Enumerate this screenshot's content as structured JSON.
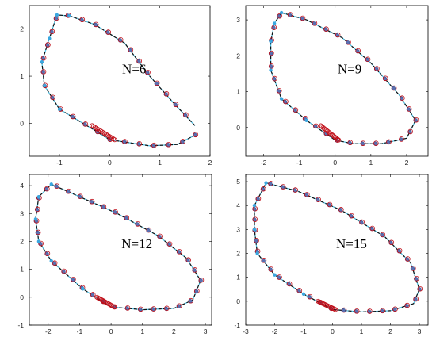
{
  "colors": {
    "dash_line": "#111111",
    "cyan_curve": "#4fc3e8",
    "blue_marker": "#5a6fb0",
    "red_circle": "#c0101a",
    "vertex_marker": "#3aa7e0"
  },
  "chart_data": [
    {
      "type": "scatter",
      "label": "N=6",
      "xlim": [
        -1.6,
        2.0
      ],
      "ylim": [
        -0.7,
        2.5
      ],
      "xticks": [
        -1,
        0,
        1,
        2
      ],
      "yticks": [
        0,
        1,
        2
      ],
      "xtick_labels": [
        "-1",
        "0",
        "1",
        "2"
      ],
      "ytick_labels": [
        "0",
        "1",
        "2"
      ],
      "vertices": [
        [
          1.7,
          -0.25
        ],
        [
          1.35,
          -0.45
        ],
        [
          0.8,
          -0.48
        ],
        [
          0,
          -0.35
        ],
        [
          -0.3,
          -0.15
        ],
        [
          -1.0,
          0.3
        ],
        [
          -1.3,
          0.8
        ],
        [
          -1.35,
          1.3
        ],
        [
          -1.2,
          1.8
        ],
        [
          -1.05,
          2.3
        ],
        [
          -0.8,
          2.28
        ],
        [
          -0.3,
          2.1
        ],
        [
          0.3,
          1.7
        ],
        [
          0.8,
          1.0
        ],
        [
          1.3,
          0.4
        ],
        [
          1.7,
          -0.05
        ]
      ],
      "cluster_start": [
        -0.35,
        -0.05
      ],
      "cluster_end": [
        0.1,
        -0.35
      ],
      "grid": false
    },
    {
      "type": "scatter",
      "label": "N=9",
      "xlim": [
        -2.5,
        2.6
      ],
      "ylim": [
        -0.8,
        3.4
      ],
      "xticks": [
        -2,
        -1,
        0,
        1,
        2
      ],
      "yticks": [
        0,
        1,
        2,
        3
      ],
      "xtick_labels": [
        "-2",
        "-1",
        "0",
        "1",
        "2"
      ],
      "ytick_labels": [
        "0",
        "1",
        "2",
        "3"
      ],
      "vertices": [
        [
          2.25,
          0.2
        ],
        [
          2.0,
          -0.3
        ],
        [
          1.3,
          -0.45
        ],
        [
          0.5,
          -0.45
        ],
        [
          0,
          -0.35
        ],
        [
          -0.8,
          0.2
        ],
        [
          -1.5,
          0.8
        ],
        [
          -1.8,
          1.6
        ],
        [
          -1.8,
          2.4
        ],
        [
          -1.7,
          2.9
        ],
        [
          -1.5,
          3.2
        ],
        [
          -0.8,
          3.0
        ],
        [
          0.2,
          2.5
        ],
        [
          1.0,
          1.8
        ],
        [
          1.8,
          0.9
        ],
        [
          2.25,
          0.2
        ]
      ],
      "cluster_start": [
        -0.4,
        0.05
      ],
      "cluster_end": [
        0.1,
        -0.35
      ],
      "grid": false
    },
    {
      "type": "scatter",
      "label": "N=12",
      "xlim": [
        -2.6,
        3.2
      ],
      "ylim": [
        -1.0,
        4.4
      ],
      "xticks": [
        -2,
        -1,
        0,
        1,
        2,
        3
      ],
      "yticks": [
        -1,
        0,
        1,
        2,
        3,
        4
      ],
      "xtick_labels": [
        "-2",
        "-1",
        "0",
        "1",
        "2",
        "3"
      ],
      "ytick_labels": [
        "-1",
        "0",
        "1",
        "2",
        "3",
        "4"
      ],
      "vertices": [
        [
          2.85,
          0.6
        ],
        [
          2.6,
          -0.1
        ],
        [
          2.0,
          -0.4
        ],
        [
          1.0,
          -0.45
        ],
        [
          0,
          -0.35
        ],
        [
          -0.9,
          0.3
        ],
        [
          -1.9,
          1.3
        ],
        [
          -2.3,
          2.0
        ],
        [
          -2.4,
          2.8
        ],
        [
          -2.3,
          3.6
        ],
        [
          -1.9,
          4.05
        ],
        [
          -1.0,
          3.6
        ],
        [
          0.2,
          3.0
        ],
        [
          1.5,
          2.2
        ],
        [
          2.4,
          1.4
        ],
        [
          2.85,
          0.6
        ]
      ],
      "cluster_start": [
        -0.45,
        0.0
      ],
      "cluster_end": [
        0.1,
        -0.35
      ],
      "grid": false
    },
    {
      "type": "scatter",
      "label": "N=15",
      "xlim": [
        -3.0,
        3.3
      ],
      "ylim": [
        -1.0,
        5.3
      ],
      "xticks": [
        -3,
        -2,
        -1,
        0,
        1,
        2,
        3
      ],
      "yticks": [
        -1,
        0,
        1,
        2,
        3,
        4,
        5
      ],
      "xtick_labels": [
        "-3",
        "-2",
        "-1",
        "0",
        "1",
        "2",
        "3"
      ],
      "ytick_labels": [
        "-1",
        "0",
        "1",
        "2",
        "3",
        "4",
        "5"
      ],
      "vertices": [
        [
          3.0,
          0.5
        ],
        [
          2.8,
          -0.1
        ],
        [
          2.0,
          -0.4
        ],
        [
          1.0,
          -0.45
        ],
        [
          0,
          -0.35
        ],
        [
          -1.0,
          0.3
        ],
        [
          -2.0,
          1.1
        ],
        [
          -2.6,
          2.0
        ],
        [
          -2.7,
          3.0
        ],
        [
          -2.7,
          4.0
        ],
        [
          -2.3,
          4.95
        ],
        [
          -1.2,
          4.6
        ],
        [
          0.3,
          3.8
        ],
        [
          1.8,
          2.7
        ],
        [
          2.7,
          1.6
        ],
        [
          3.0,
          0.5
        ]
      ],
      "cluster_start": [
        -0.5,
        0.0
      ],
      "cluster_end": [
        0.1,
        -0.35
      ],
      "grid": false
    }
  ]
}
